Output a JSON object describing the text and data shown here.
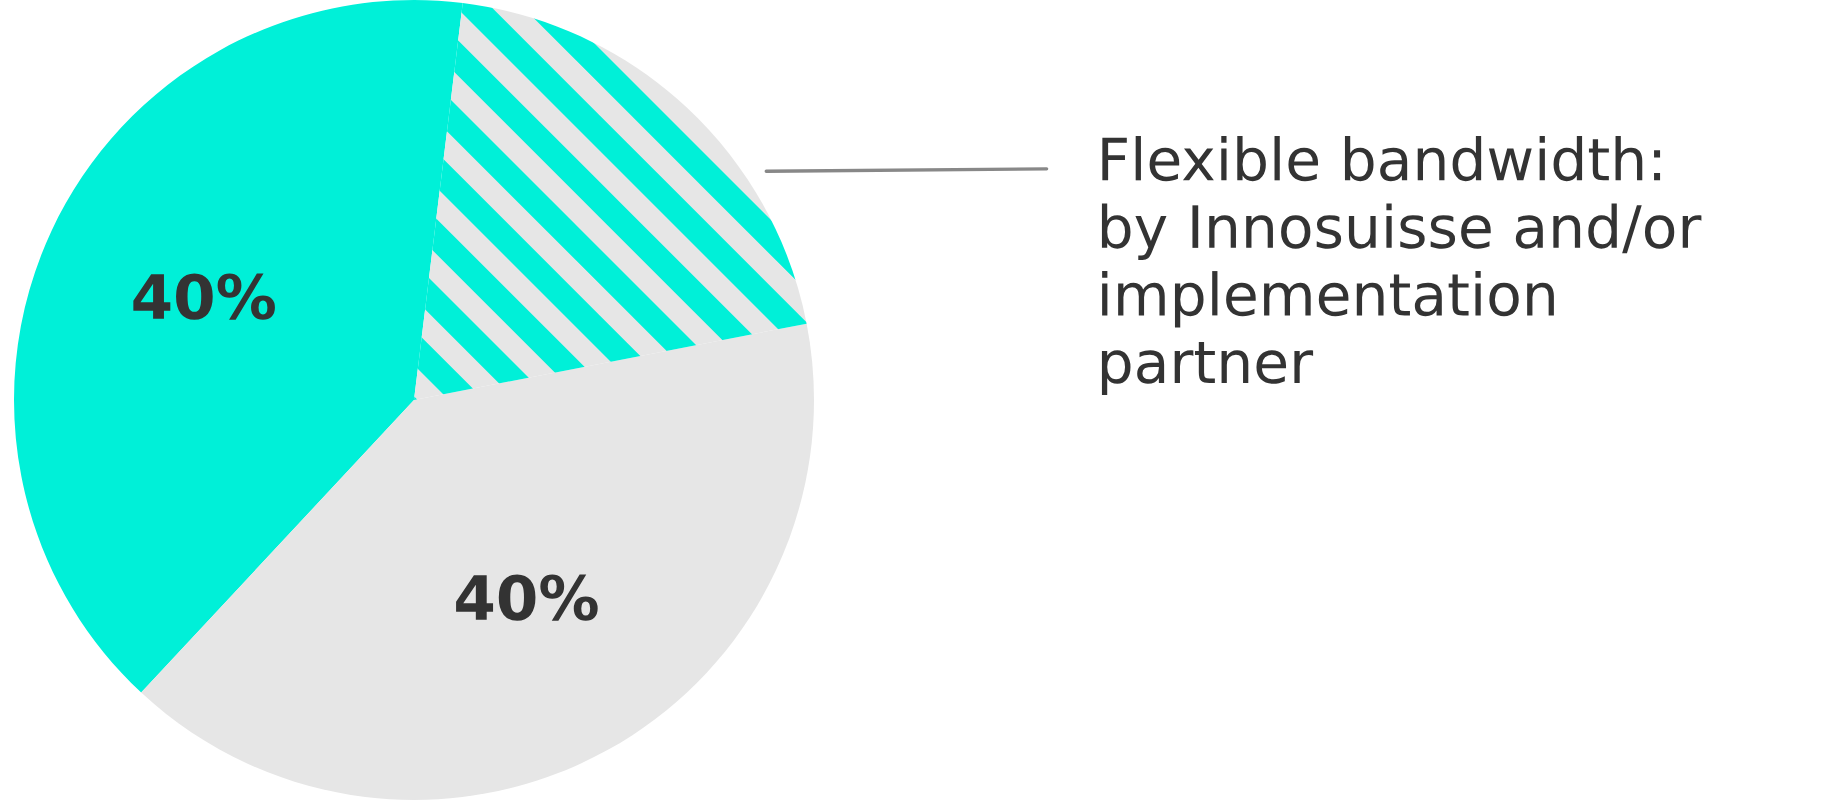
{
  "chart_data": {
    "type": "pie",
    "categories": [
      null,
      null,
      "Flexible bandwidth:\nby Innosuisse and/or\nimplementation\npartner"
    ],
    "values": [
      40,
      40,
      20
    ],
    "colors": [
      "#00f0d8",
      "#e6e6e6",
      "#e6e6e6"
    ],
    "value_labels": [
      "40%",
      "40%",
      null
    ]
  }
}
